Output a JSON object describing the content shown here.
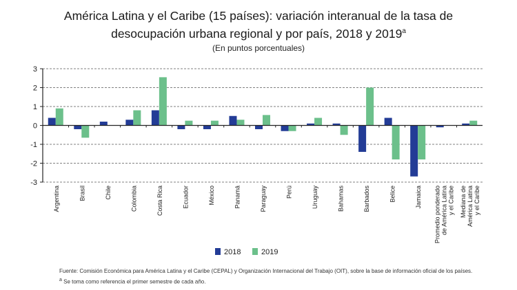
{
  "chart_data": {
    "type": "bar",
    "title_line1": "América Latina y el Caribe (15 países): variación interanual de la tasa de",
    "title_line2": "desocupación urbana regional y por país, 2018 y 2019",
    "title_superscript": "a",
    "subtitle": "(En puntos porcentuales)",
    "xlabel": "",
    "ylabel": "",
    "ylim": [
      -3,
      3
    ],
    "yticks": [
      3,
      2,
      1,
      0,
      -1,
      -2,
      -3
    ],
    "grid": true,
    "legend_position": "bottom",
    "categories": [
      "Argentina",
      "Brasil",
      "Chile",
      "Colombia",
      "Costa Rica",
      "Ecuador",
      "México",
      "Panamá",
      "Paraguay",
      "Perú",
      "Uruguay",
      "Bahamas",
      "Barbados",
      "Belice",
      "Jamaica",
      "Promedio ponderado de América Latina y el Caribe",
      "Mediana de América Latina y el Caribe"
    ],
    "series": [
      {
        "name": "2018",
        "color": "#233c96",
        "values": [
          0.4,
          -0.2,
          0.2,
          0.3,
          0.8,
          -0.2,
          -0.2,
          0.5,
          -0.2,
          -0.3,
          0.1,
          0.1,
          -1.4,
          0.4,
          -2.7,
          -0.1,
          0.1
        ]
      },
      {
        "name": "2019",
        "color": "#6cc08b",
        "values": [
          0.9,
          -0.65,
          0,
          0.8,
          2.55,
          0.25,
          0.25,
          0.3,
          0.55,
          -0.3,
          0.4,
          -0.5,
          2.0,
          -1.8,
          -1.8,
          0,
          0.25
        ]
      }
    ]
  },
  "footnotes": {
    "source": "Fuente: Comisión Económica para América Latina y el Caribe (CEPAL) y Organización Internacional del Trabajo (OIT), sobre la base de información oficial de los países.",
    "a_marker": "a",
    "a_text": " Se toma como referencia el primer semestre de cada año."
  }
}
